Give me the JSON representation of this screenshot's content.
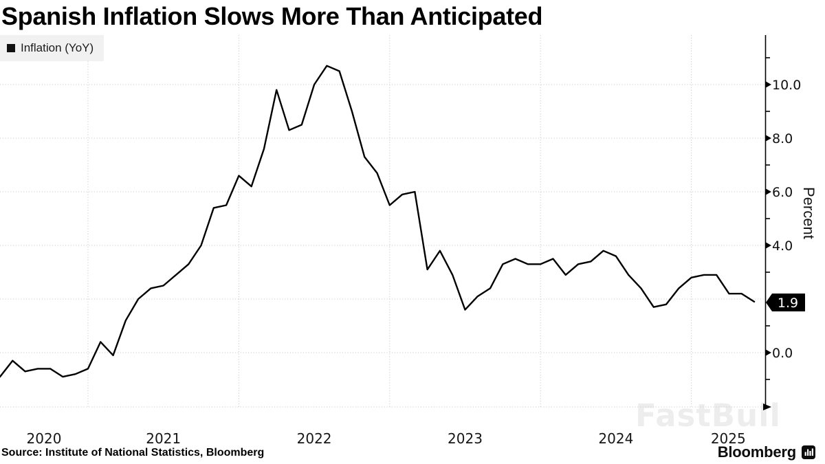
{
  "title": "Spanish Inflation Slows More Than Anticipated",
  "legend": {
    "label": "Inflation (YoY)",
    "marker_color": "#111111"
  },
  "y_axis": {
    "label": "Percent",
    "labeled_ticks": [
      {
        "v": 10,
        "label": "10.0"
      },
      {
        "v": 8,
        "label": "8.0"
      },
      {
        "v": 6,
        "label": "6.0"
      },
      {
        "v": 4,
        "label": "4.0"
      },
      {
        "v": 0,
        "label": "0.0"
      }
    ],
    "last_value_label": "1.9"
  },
  "x_axis": {
    "year_labels": [
      "2020",
      "2021",
      "2022",
      "2023",
      "2024",
      "2025"
    ]
  },
  "source": "Source: Institute of National Statistics, Bloomberg",
  "branding": {
    "logo": "Bloomberg",
    "watermark": "FastBull"
  },
  "chart_data": {
    "type": "line",
    "title": "Spanish Inflation Slows More Than Anticipated",
    "ylabel": "Percent",
    "grid": "dotted",
    "legend_position": "top-left",
    "ylim": [
      -2.03,
      11.85
    ],
    "y_major_ticks": [
      0,
      2,
      4,
      6,
      8,
      10
    ],
    "y_minor_ticks": [
      -1,
      1,
      3,
      5,
      7,
      9,
      11
    ],
    "last_value": 1.9,
    "series": [
      {
        "name": "Inflation (YoY)",
        "color": "#000000",
        "x": [
          "2020-05",
          "2020-06",
          "2020-07",
          "2020-08",
          "2020-09",
          "2020-10",
          "2020-11",
          "2020-12",
          "2021-01",
          "2021-02",
          "2021-03",
          "2021-04",
          "2021-05",
          "2021-06",
          "2021-07",
          "2021-08",
          "2021-09",
          "2021-10",
          "2021-11",
          "2021-12",
          "2022-01",
          "2022-02",
          "2022-03",
          "2022-04",
          "2022-05",
          "2022-06",
          "2022-07",
          "2022-08",
          "2022-09",
          "2022-10",
          "2022-11",
          "2022-12",
          "2023-01",
          "2023-02",
          "2023-03",
          "2023-04",
          "2023-05",
          "2023-06",
          "2023-07",
          "2023-08",
          "2023-09",
          "2023-10",
          "2023-11",
          "2023-12",
          "2024-01",
          "2024-02",
          "2024-03",
          "2024-04",
          "2024-05",
          "2024-06",
          "2024-07",
          "2024-08",
          "2024-09",
          "2024-10",
          "2024-11",
          "2024-12",
          "2025-01",
          "2025-02",
          "2025-03",
          "2025-04",
          "2025-05"
        ],
        "values": [
          -0.9,
          -0.3,
          -0.7,
          -0.6,
          -0.6,
          -0.9,
          -0.8,
          -0.6,
          0.4,
          -0.1,
          1.2,
          2.0,
          2.4,
          2.5,
          2.9,
          3.3,
          4.0,
          5.4,
          5.5,
          6.6,
          6.2,
          7.6,
          9.8,
          8.3,
          8.5,
          10.0,
          10.7,
          10.5,
          9.0,
          7.3,
          6.7,
          5.5,
          5.9,
          6.0,
          3.1,
          3.8,
          2.9,
          1.6,
          2.1,
          2.4,
          3.3,
          3.5,
          3.3,
          3.3,
          3.5,
          2.9,
          3.3,
          3.4,
          3.8,
          3.6,
          2.9,
          2.4,
          1.7,
          1.8,
          2.4,
          2.8,
          2.9,
          2.9,
          2.2,
          2.2,
          1.9
        ]
      }
    ]
  }
}
